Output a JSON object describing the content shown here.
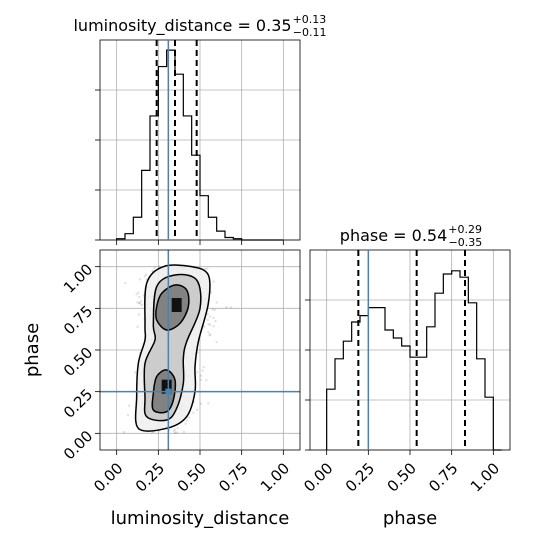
{
  "chart_data": {
    "type": "corner",
    "parameters": [
      "luminosity_distance",
      "phase"
    ],
    "truths": {
      "luminosity_distance": 0.31,
      "phase": 0.25
    },
    "axes": {
      "luminosity_distance": {
        "range": [
          -0.1,
          1.1
        ],
        "ticks": [
          0.0,
          0.25,
          0.5,
          0.75,
          1.0
        ],
        "tick_labels": [
          "0.00",
          "0.25",
          "0.50",
          "0.75",
          "1.00"
        ]
      },
      "phase": {
        "range": [
          -0.1,
          1.1
        ],
        "ticks": [
          0.0,
          0.25,
          0.5,
          0.75,
          1.0
        ],
        "tick_labels": [
          "0.00",
          "0.25",
          "0.50",
          "0.75",
          "1.00"
        ]
      }
    },
    "panels": [
      {
        "id": "hist-luminosity_distance",
        "type": "histogram",
        "parameter": "luminosity_distance",
        "title": {
          "prefix": "luminosity_distance = ",
          "median": "0.35",
          "plus": "+0.13",
          "minus": "−0.11"
        },
        "quantiles": [
          0.24,
          0.35,
          0.48
        ],
        "bin_edges": [
          0.0,
          0.05,
          0.1,
          0.15,
          0.2,
          0.25,
          0.3,
          0.35,
          0.4,
          0.45,
          0.5,
          0.55,
          0.6,
          0.65,
          0.7,
          0.75,
          0.8,
          0.85,
          0.9,
          0.95,
          1.0
        ],
        "counts": [
          1,
          5,
          18,
          55,
          98,
          137,
          150,
          131,
          98,
          67,
          35,
          18,
          7,
          2,
          1,
          0,
          0,
          0,
          0,
          0
        ],
        "ylim": [
          0,
          158
        ]
      },
      {
        "id": "hist-phase",
        "type": "histogram",
        "parameter": "phase",
        "title": {
          "prefix": "phase = ",
          "median": "0.54",
          "plus": "+0.29",
          "minus": "−0.35"
        },
        "quantiles": [
          0.19,
          0.54,
          0.83
        ],
        "bin_edges": [
          0.0,
          0.05,
          0.1,
          0.15,
          0.2,
          0.25,
          0.3,
          0.35,
          0.4,
          0.45,
          0.5,
          0.55,
          0.6,
          0.65,
          0.7,
          0.75,
          0.8,
          0.85,
          0.9,
          0.95,
          1.0,
          1.05
        ],
        "counts": [
          38,
          57,
          68,
          80,
          84,
          89,
          89,
          75,
          70,
          65,
          58,
          58,
          77,
          98,
          110,
          112,
          108,
          92,
          57,
          33,
          0
        ],
        "ylim": [
          0,
          125
        ]
      },
      {
        "id": "scatter-luminosity_distance-phase",
        "type": "density",
        "x": "luminosity_distance",
        "y": "phase",
        "contours": [
          {
            "level": "outer",
            "points": [
              [
                0.13,
                0.03
              ],
              [
                0.3,
                0.03
              ],
              [
                0.42,
                0.1
              ],
              [
                0.47,
                0.25
              ],
              [
                0.47,
                0.4
              ],
              [
                0.49,
                0.55
              ],
              [
                0.55,
                0.78
              ],
              [
                0.55,
                0.95
              ],
              [
                0.45,
                1.0
              ],
              [
                0.28,
                1.0
              ],
              [
                0.18,
                0.9
              ],
              [
                0.17,
                0.65
              ],
              [
                0.17,
                0.56
              ],
              [
                0.13,
                0.42
              ],
              [
                0.12,
                0.22
              ]
            ]
          },
          {
            "level": "middle",
            "points": [
              [
                0.18,
                0.1
              ],
              [
                0.3,
                0.08
              ],
              [
                0.36,
                0.15
              ],
              [
                0.4,
                0.3
              ],
              [
                0.4,
                0.45
              ],
              [
                0.42,
                0.55
              ],
              [
                0.5,
                0.75
              ],
              [
                0.48,
                0.92
              ],
              [
                0.35,
                0.95
              ],
              [
                0.24,
                0.88
              ],
              [
                0.22,
                0.65
              ],
              [
                0.23,
                0.56
              ],
              [
                0.17,
                0.42
              ],
              [
                0.17,
                0.22
              ]
            ]
          },
          {
            "level": "inner-upper",
            "points": [
              [
                0.24,
                0.68
              ],
              [
                0.3,
                0.62
              ],
              [
                0.38,
                0.66
              ],
              [
                0.43,
                0.76
              ],
              [
                0.42,
                0.86
              ],
              [
                0.35,
                0.89
              ],
              [
                0.27,
                0.84
              ],
              [
                0.24,
                0.76
              ]
            ]
          },
          {
            "level": "inner-lower",
            "points": [
              [
                0.22,
                0.14
              ],
              [
                0.3,
                0.13
              ],
              [
                0.34,
                0.2
              ],
              [
                0.35,
                0.32
              ],
              [
                0.3,
                0.38
              ],
              [
                0.24,
                0.34
              ],
              [
                0.22,
                0.24
              ]
            ]
          }
        ],
        "peaks": [
          [
            0.36,
            0.77
          ],
          [
            0.3,
            0.28
          ]
        ]
      }
    ]
  }
}
